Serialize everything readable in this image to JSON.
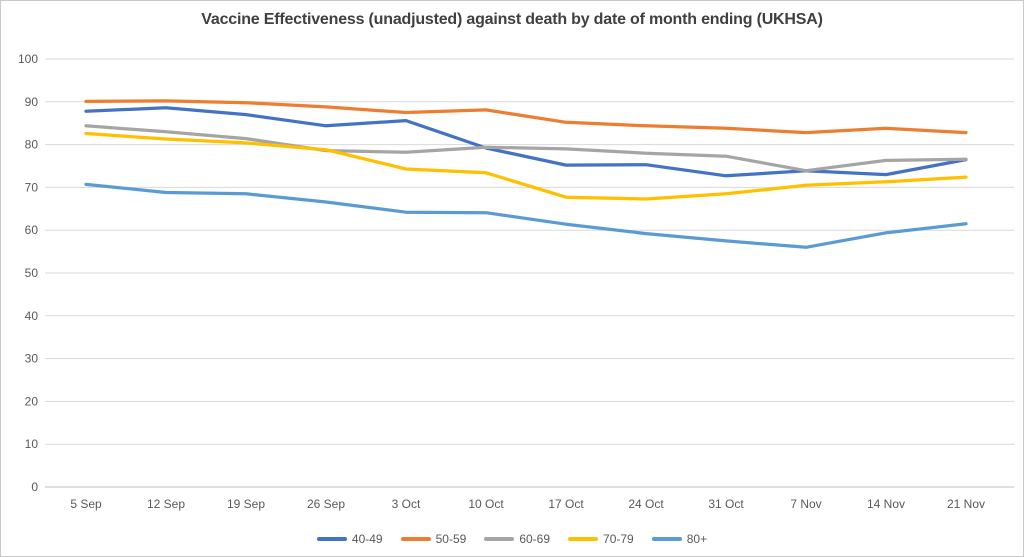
{
  "title": "Vaccine Effectiveness (unadjusted) against death by date of month ending (UKHSA)",
  "colors": {
    "grid": "#d9d9d9",
    "axis_line": "#bfbfbf",
    "tick_text": "#595959",
    "title_text": "#404040"
  },
  "chart_data": {
    "type": "line",
    "title": "Vaccine Effectiveness (unadjusted) against death by date of month ending (UKHSA)",
    "xlabel": "",
    "ylabel": "",
    "ylim": [
      0,
      100
    ],
    "y_ticks": [
      100,
      90,
      80,
      70,
      60,
      50,
      40,
      30,
      20,
      10,
      0
    ],
    "grid": "horizontal",
    "legend_position": "bottom",
    "categories": [
      "5 Sep",
      "12 Sep",
      "19 Sep",
      "26 Sep",
      "3 Oct",
      "10 Oct",
      "17 Oct",
      "24 Oct",
      "31 Oct",
      "7 Nov",
      "14 Nov",
      "21 Nov"
    ],
    "series": [
      {
        "name": "40-49",
        "color": "#4472c4",
        "values": [
          87.8,
          88.6,
          87.0,
          84.4,
          85.6,
          79.2,
          75.2,
          75.3,
          72.7,
          73.9,
          73.0,
          76.5
        ]
      },
      {
        "name": "50-59",
        "color": "#ed7d31",
        "values": [
          90.1,
          90.2,
          89.8,
          88.8,
          87.5,
          88.1,
          85.2,
          84.4,
          83.8,
          82.8,
          83.8,
          82.8
        ]
      },
      {
        "name": "60-69",
        "color": "#a5a5a5",
        "values": [
          84.4,
          83.0,
          81.4,
          78.6,
          78.2,
          79.4,
          79.0,
          78.0,
          77.3,
          73.9,
          76.3,
          76.6
        ]
      },
      {
        "name": "70-79",
        "color": "#ffc000",
        "values": [
          82.6,
          81.3,
          80.4,
          78.8,
          74.3,
          73.4,
          67.7,
          67.3,
          68.5,
          70.5,
          71.3,
          72.4
        ]
      },
      {
        "name": "80+",
        "color": "#5b9bd5",
        "values": [
          70.7,
          68.8,
          68.5,
          66.6,
          64.2,
          64.1,
          61.4,
          59.2,
          57.5,
          56.0,
          59.4,
          61.5
        ]
      }
    ]
  }
}
